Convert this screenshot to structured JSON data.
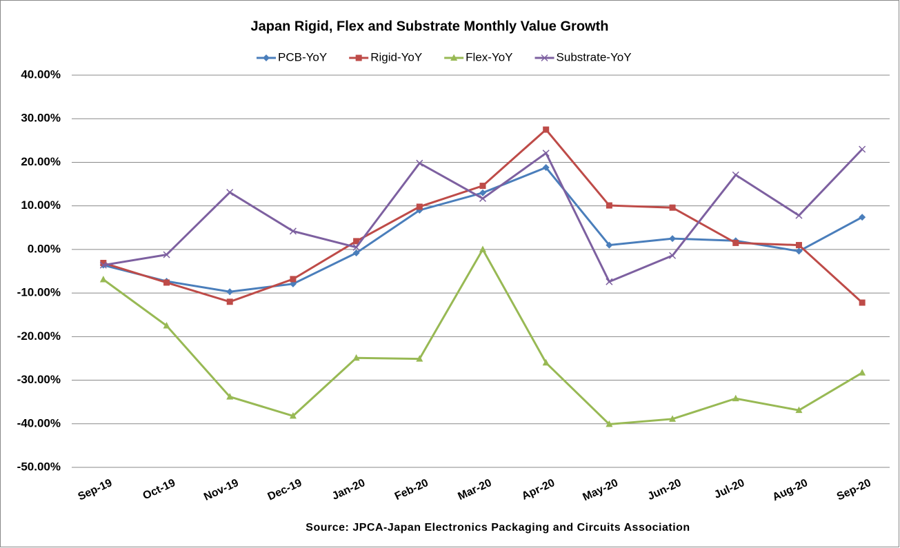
{
  "chart_data": {
    "type": "line",
    "title": "Japan Rigid, Flex and Substrate Monthly Value Growth",
    "source": "Source: JPCA-Japan Electronics Packaging and Circuits Association",
    "categories": [
      "Sep-19",
      "Oct-19",
      "Nov-19",
      "Dec-19",
      "Jan-20",
      "Feb-20",
      "Mar-20",
      "Apr-20",
      "May-20",
      "Jun-20",
      "Jul-20",
      "Aug-20",
      "Sep-20"
    ],
    "series": [
      {
        "name": "PCB-YoY",
        "color": "#4a7ebb",
        "marker": "diamond",
        "values": [
          -3.6,
          -7.3,
          -9.7,
          -7.9,
          -0.8,
          9.0,
          13.0,
          18.8,
          1.0,
          2.5,
          2.0,
          -0.4,
          7.4
        ]
      },
      {
        "name": "Rigid-YoY",
        "color": "#be4b48",
        "marker": "square",
        "values": [
          -3.1,
          -7.6,
          -12.0,
          -6.8,
          1.9,
          9.8,
          14.6,
          27.5,
          10.1,
          9.6,
          1.5,
          1.0,
          -12.2
        ]
      },
      {
        "name": "Flex-YoY",
        "color": "#98b954",
        "marker": "triangle",
        "values": [
          -6.9,
          -17.5,
          -33.8,
          -38.2,
          -24.9,
          -25.1,
          0.0,
          -26.0,
          -40.1,
          -38.9,
          -34.2,
          -36.9,
          -28.3
        ]
      },
      {
        "name": "Substrate-YoY",
        "color": "#7d60a0",
        "marker": "x",
        "values": [
          -3.6,
          -1.2,
          13.1,
          4.2,
          0.5,
          19.8,
          11.7,
          22.1,
          -7.4,
          -1.4,
          17.1,
          7.8,
          23.0
        ]
      }
    ],
    "ylim": [
      -50,
      40
    ],
    "yticks": [
      {
        "value": -50,
        "label": "-50.00%"
      },
      {
        "value": -40,
        "label": "-40.00%"
      },
      {
        "value": -30,
        "label": "-30.00%"
      },
      {
        "value": -20,
        "label": "-20.00%"
      },
      {
        "value": -10,
        "label": "-10.00%"
      },
      {
        "value": 0,
        "label": "0.00%"
      },
      {
        "value": 10,
        "label": "10.00%"
      },
      {
        "value": 20,
        "label": "20.00%"
      },
      {
        "value": 30,
        "label": "30.00%"
      },
      {
        "value": 40,
        "label": "40.00%"
      }
    ],
    "grid": true,
    "legend": "top"
  }
}
